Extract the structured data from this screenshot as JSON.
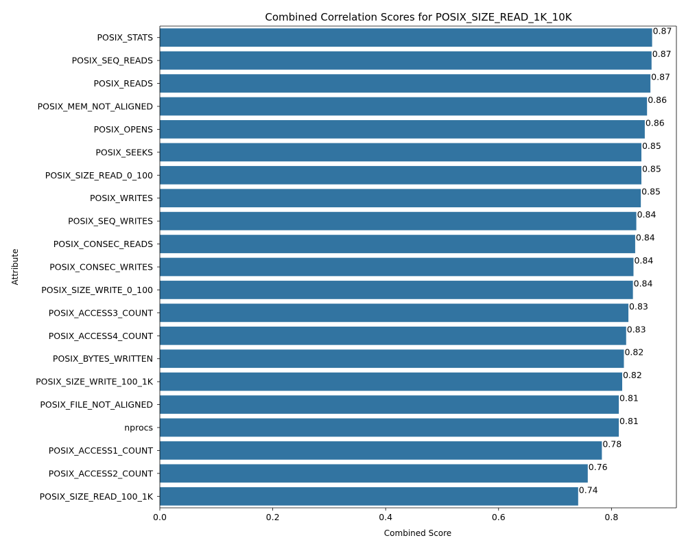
{
  "chart_data": {
    "type": "bar",
    "orientation": "horizontal",
    "title": "Combined Correlation Scores for POSIX_SIZE_READ_1K_10K",
    "xlabel": "Combined Score",
    "ylabel": "Attribute",
    "xlim": [
      0,
      0.915
    ],
    "xticks": [
      "0.0",
      "0.2",
      "0.4",
      "0.6",
      "0.8"
    ],
    "bar_color": "#3274a1",
    "grid": false,
    "categories": [
      "POSIX_STATS",
      "POSIX_SEQ_READS",
      "POSIX_READS",
      "POSIX_MEM_NOT_ALIGNED",
      "POSIX_OPENS",
      "POSIX_SEEKS",
      "POSIX_SIZE_READ_0_100",
      "POSIX_WRITES",
      "POSIX_SEQ_WRITES",
      "POSIX_CONSEC_READS",
      "POSIX_CONSEC_WRITES",
      "POSIX_SIZE_WRITE_0_100",
      "POSIX_ACCESS3_COUNT",
      "POSIX_ACCESS4_COUNT",
      "POSIX_BYTES_WRITTEN",
      "POSIX_SIZE_WRITE_100_1K",
      "POSIX_FILE_NOT_ALIGNED",
      "nprocs",
      "POSIX_ACCESS1_COUNT",
      "POSIX_ACCESS2_COUNT",
      "POSIX_SIZE_READ_100_1K"
    ],
    "values": [
      0.872,
      0.871,
      0.869,
      0.863,
      0.859,
      0.853,
      0.853,
      0.852,
      0.844,
      0.842,
      0.839,
      0.838,
      0.83,
      0.826,
      0.822,
      0.819,
      0.813,
      0.813,
      0.783,
      0.758,
      0.741
    ],
    "data_labels": [
      "0.87",
      "0.87",
      "0.87",
      "0.86",
      "0.86",
      "0.85",
      "0.85",
      "0.85",
      "0.84",
      "0.84",
      "0.84",
      "0.84",
      "0.83",
      "0.83",
      "0.82",
      "0.82",
      "0.81",
      "0.81",
      "0.78",
      "0.76",
      "0.74"
    ]
  }
}
